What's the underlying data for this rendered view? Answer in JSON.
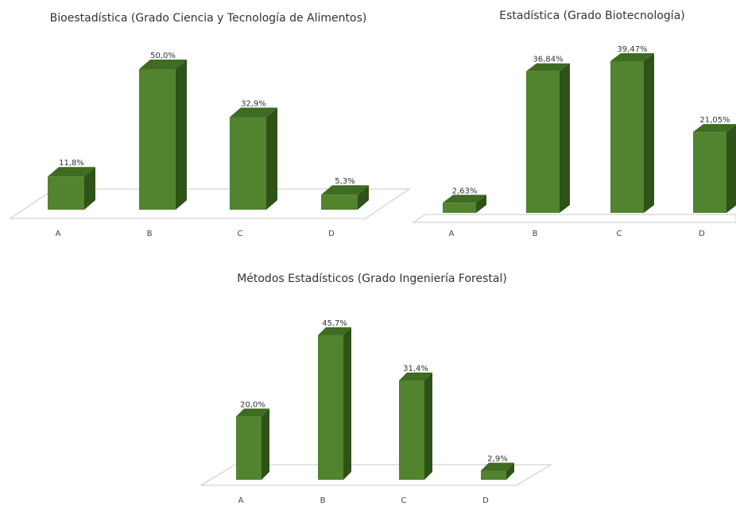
{
  "colors": {
    "bar_front": "#52832e",
    "bar_top": "#3f6b22",
    "bar_side": "#2e5217",
    "floor_stroke": "#c8c8c8",
    "background": "#ffffff"
  },
  "chart_data": [
    {
      "type": "bar",
      "title": "Bioestadística (Grado Ciencia y Tecnología de Alimentos)",
      "categories": [
        "A",
        "B",
        "C",
        "D"
      ],
      "values": [
        11.8,
        50.0,
        32.9,
        5.3
      ],
      "data_labels": [
        "11,8%",
        "50,0%",
        "32,9%",
        "5,3%"
      ],
      "ylim": [
        0,
        50
      ],
      "grid": false,
      "legend": "none",
      "style": "3d-column"
    },
    {
      "type": "bar",
      "title": "Estadística (Grado Biotecnología)",
      "categories": [
        "A",
        "B",
        "C",
        "D"
      ],
      "values": [
        2.63,
        36.84,
        39.47,
        21.05
      ],
      "data_labels": [
        "2,63%",
        "36,84%",
        "39,47%",
        "21,05%"
      ],
      "ylim": [
        0,
        39.47
      ],
      "grid": false,
      "legend": "none",
      "style": "3d-column"
    },
    {
      "type": "bar",
      "title": "Métodos Estadísticos (Grado Ingeniería Forestal)",
      "categories": [
        "A",
        "B",
        "C",
        "D"
      ],
      "values": [
        20.0,
        45.7,
        31.4,
        2.9
      ],
      "data_labels": [
        "20,0%",
        "45,7%",
        "31,4%",
        "2,9%"
      ],
      "ylim": [
        0,
        45.7
      ],
      "grid": false,
      "legend": "none",
      "style": "3d-column"
    }
  ]
}
